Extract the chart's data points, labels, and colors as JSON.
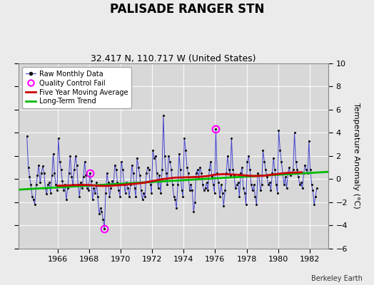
{
  "title": "PALISADE RANGER STN",
  "subtitle": "32.417 N, 110.717 W (United States)",
  "ylabel": "Temperature Anomaly (°C)",
  "credit": "Berkeley Earth",
  "ylim": [
    -6,
    10
  ],
  "xlim": [
    1963.5,
    1983.2
  ],
  "xticks": [
    1966,
    1968,
    1970,
    1972,
    1974,
    1976,
    1978,
    1980,
    1982
  ],
  "yticks": [
    -6,
    -4,
    -2,
    0,
    2,
    4,
    6,
    8,
    10
  ],
  "bg_color": "#ebebeb",
  "plot_bg_color": "#d8d8d8",
  "raw_line_color": "#4444cc",
  "raw_marker_color": "#111111",
  "moving_avg_color": "#cc0000",
  "trend_color": "#00bb00",
  "qc_fail_color": "#ff00ff",
  "raw_monthly_data": [
    [
      1964.04,
      3.7
    ],
    [
      1964.13,
      1.0
    ],
    [
      1964.21,
      0.2
    ],
    [
      1964.29,
      -0.5
    ],
    [
      1964.38,
      -1.5
    ],
    [
      1964.46,
      -1.8
    ],
    [
      1964.54,
      -2.2
    ],
    [
      1964.63,
      -0.5
    ],
    [
      1964.71,
      0.3
    ],
    [
      1964.79,
      1.2
    ],
    [
      1964.88,
      -0.3
    ],
    [
      1964.96,
      0.5
    ],
    [
      1965.04,
      1.1
    ],
    [
      1965.13,
      0.5
    ],
    [
      1965.21,
      -0.8
    ],
    [
      1965.29,
      -1.3
    ],
    [
      1965.38,
      -0.5
    ],
    [
      1965.46,
      -0.3
    ],
    [
      1965.54,
      -1.2
    ],
    [
      1965.63,
      0.3
    ],
    [
      1965.71,
      2.2
    ],
    [
      1965.79,
      0.5
    ],
    [
      1965.88,
      -0.5
    ],
    [
      1965.96,
      -1.0
    ],
    [
      1966.04,
      3.5
    ],
    [
      1966.13,
      1.5
    ],
    [
      1966.21,
      0.8
    ],
    [
      1966.29,
      -0.2
    ],
    [
      1966.38,
      -1.0
    ],
    [
      1966.46,
      -0.5
    ],
    [
      1966.54,
      -1.8
    ],
    [
      1966.63,
      -0.8
    ],
    [
      1966.71,
      0.5
    ],
    [
      1966.79,
      2.0
    ],
    [
      1966.88,
      0.2
    ],
    [
      1966.96,
      -0.5
    ],
    [
      1967.04,
      0.8
    ],
    [
      1967.13,
      2.0
    ],
    [
      1967.21,
      1.2
    ],
    [
      1967.29,
      -0.5
    ],
    [
      1967.38,
      -1.5
    ],
    [
      1967.46,
      -0.3
    ],
    [
      1967.54,
      -0.8
    ],
    [
      1967.63,
      0.2
    ],
    [
      1967.71,
      1.5
    ],
    [
      1967.79,
      0.3
    ],
    [
      1967.88,
      -0.8
    ],
    [
      1967.96,
      -1.0
    ],
    [
      1968.04,
      0.5
    ],
    [
      1968.13,
      -0.2
    ],
    [
      1968.21,
      -1.8
    ],
    [
      1968.29,
      -0.8
    ],
    [
      1968.38,
      -1.2
    ],
    [
      1968.46,
      -0.3
    ],
    [
      1968.54,
      -1.5
    ],
    [
      1968.63,
      -3.0
    ],
    [
      1968.71,
      -2.5
    ],
    [
      1968.79,
      -2.8
    ],
    [
      1968.88,
      -3.5
    ],
    [
      1968.96,
      -4.3
    ],
    [
      1969.04,
      -1.2
    ],
    [
      1969.13,
      0.5
    ],
    [
      1969.21,
      -0.3
    ],
    [
      1969.29,
      -1.5
    ],
    [
      1969.38,
      -0.8
    ],
    [
      1969.46,
      -0.2
    ],
    [
      1969.54,
      -0.5
    ],
    [
      1969.63,
      1.2
    ],
    [
      1969.71,
      0.8
    ],
    [
      1969.79,
      -0.3
    ],
    [
      1969.88,
      -1.0
    ],
    [
      1969.96,
      -1.5
    ],
    [
      1970.04,
      1.5
    ],
    [
      1970.13,
      0.8
    ],
    [
      1970.21,
      -0.5
    ],
    [
      1970.29,
      -1.2
    ],
    [
      1970.38,
      -0.3
    ],
    [
      1970.46,
      -0.8
    ],
    [
      1970.54,
      -1.5
    ],
    [
      1970.63,
      -0.5
    ],
    [
      1970.71,
      1.2
    ],
    [
      1970.79,
      0.5
    ],
    [
      1970.88,
      -0.8
    ],
    [
      1970.96,
      -1.5
    ],
    [
      1971.04,
      1.8
    ],
    [
      1971.13,
      1.0
    ],
    [
      1971.21,
      0.3
    ],
    [
      1971.29,
      -1.0
    ],
    [
      1971.38,
      -1.8
    ],
    [
      1971.46,
      -1.2
    ],
    [
      1971.54,
      -1.5
    ],
    [
      1971.63,
      0.5
    ],
    [
      1971.71,
      1.0
    ],
    [
      1971.79,
      0.8
    ],
    [
      1971.88,
      -0.5
    ],
    [
      1971.96,
      -1.2
    ],
    [
      1972.04,
      2.5
    ],
    [
      1972.13,
      1.8
    ],
    [
      1972.21,
      2.0
    ],
    [
      1972.29,
      0.5
    ],
    [
      1972.38,
      -0.8
    ],
    [
      1972.46,
      0.3
    ],
    [
      1972.54,
      -1.2
    ],
    [
      1972.63,
      0.8
    ],
    [
      1972.71,
      5.5
    ],
    [
      1972.79,
      2.0
    ],
    [
      1972.88,
      0.5
    ],
    [
      1972.96,
      -0.5
    ],
    [
      1973.04,
      2.0
    ],
    [
      1973.13,
      1.5
    ],
    [
      1973.21,
      0.8
    ],
    [
      1973.29,
      -0.5
    ],
    [
      1973.38,
      -1.5
    ],
    [
      1973.46,
      -1.8
    ],
    [
      1973.54,
      -2.5
    ],
    [
      1973.63,
      -0.5
    ],
    [
      1973.71,
      2.2
    ],
    [
      1973.79,
      0.8
    ],
    [
      1973.88,
      -1.0
    ],
    [
      1973.96,
      -1.5
    ],
    [
      1974.04,
      3.5
    ],
    [
      1974.13,
      2.5
    ],
    [
      1974.21,
      1.0
    ],
    [
      1974.29,
      0.5
    ],
    [
      1974.38,
      -1.0
    ],
    [
      1974.46,
      -0.5
    ],
    [
      1974.54,
      -1.0
    ],
    [
      1974.63,
      -2.8
    ],
    [
      1974.71,
      -2.0
    ],
    [
      1974.79,
      0.5
    ],
    [
      1974.88,
      0.8
    ],
    [
      1974.96,
      0.2
    ],
    [
      1975.04,
      1.0
    ],
    [
      1975.13,
      0.5
    ],
    [
      1975.21,
      -0.5
    ],
    [
      1975.29,
      -1.0
    ],
    [
      1975.38,
      -0.8
    ],
    [
      1975.46,
      -0.3
    ],
    [
      1975.54,
      -1.0
    ],
    [
      1975.63,
      0.8
    ],
    [
      1975.71,
      1.5
    ],
    [
      1975.79,
      0.2
    ],
    [
      1975.88,
      -0.5
    ],
    [
      1975.96,
      -1.2
    ],
    [
      1976.04,
      4.3
    ],
    [
      1976.13,
      0.5
    ],
    [
      1976.21,
      -0.3
    ],
    [
      1976.29,
      -1.5
    ],
    [
      1976.38,
      -0.5
    ],
    [
      1976.46,
      -1.2
    ],
    [
      1976.54,
      -2.3
    ],
    [
      1976.63,
      -1.0
    ],
    [
      1976.71,
      0.5
    ],
    [
      1976.79,
      2.0
    ],
    [
      1976.88,
      0.8
    ],
    [
      1976.96,
      0.3
    ],
    [
      1977.04,
      3.5
    ],
    [
      1977.13,
      0.8
    ],
    [
      1977.21,
      0.3
    ],
    [
      1977.29,
      -0.8
    ],
    [
      1977.38,
      -0.5
    ],
    [
      1977.46,
      -0.3
    ],
    [
      1977.54,
      -1.5
    ],
    [
      1977.63,
      0.5
    ],
    [
      1977.71,
      1.0
    ],
    [
      1977.79,
      -0.8
    ],
    [
      1977.88,
      -1.2
    ],
    [
      1977.96,
      -2.2
    ],
    [
      1978.04,
      1.5
    ],
    [
      1978.13,
      2.0
    ],
    [
      1978.21,
      0.8
    ],
    [
      1978.29,
      -0.5
    ],
    [
      1978.38,
      -1.0
    ],
    [
      1978.46,
      -0.5
    ],
    [
      1978.54,
      -1.5
    ],
    [
      1978.63,
      -2.2
    ],
    [
      1978.71,
      0.5
    ],
    [
      1978.79,
      0.3
    ],
    [
      1978.88,
      -1.0
    ],
    [
      1978.96,
      -0.5
    ],
    [
      1979.04,
      2.5
    ],
    [
      1979.13,
      1.5
    ],
    [
      1979.21,
      0.8
    ],
    [
      1979.29,
      0.2
    ],
    [
      1979.38,
      -0.5
    ],
    [
      1979.46,
      -0.3
    ],
    [
      1979.54,
      -1.0
    ],
    [
      1979.63,
      0.5
    ],
    [
      1979.71,
      1.8
    ],
    [
      1979.79,
      0.8
    ],
    [
      1979.88,
      -0.5
    ],
    [
      1979.96,
      -1.2
    ],
    [
      1980.04,
      4.2
    ],
    [
      1980.13,
      2.5
    ],
    [
      1980.21,
      1.5
    ],
    [
      1980.29,
      0.5
    ],
    [
      1980.38,
      -0.5
    ],
    [
      1980.46,
      0.2
    ],
    [
      1980.54,
      -0.8
    ],
    [
      1980.63,
      0.5
    ],
    [
      1980.71,
      1.0
    ],
    [
      1980.79,
      0.3
    ],
    [
      1980.88,
      0.5
    ],
    [
      1980.96,
      0.8
    ],
    [
      1981.04,
      4.0
    ],
    [
      1981.13,
      1.5
    ],
    [
      1981.21,
      0.8
    ],
    [
      1981.29,
      0.2
    ],
    [
      1981.38,
      -0.5
    ],
    [
      1981.46,
      -0.3
    ],
    [
      1981.54,
      -0.8
    ],
    [
      1981.63,
      0.5
    ],
    [
      1981.71,
      1.2
    ],
    [
      1981.79,
      0.8
    ],
    [
      1981.88,
      0.5
    ],
    [
      1981.96,
      3.3
    ],
    [
      1982.04,
      0.8
    ],
    [
      1982.13,
      -0.5
    ],
    [
      1982.21,
      -1.0
    ],
    [
      1982.29,
      -2.2
    ],
    [
      1982.38,
      -1.5
    ],
    [
      1982.46,
      -0.8
    ]
  ],
  "qc_fail_points": [
    [
      1968.04,
      0.5
    ],
    [
      1968.96,
      -4.3
    ],
    [
      1976.04,
      4.3
    ]
  ],
  "trend_x": [
    1963.5,
    1983.2
  ],
  "trend_y": [
    -0.92,
    0.62
  ],
  "moving_avg": [
    [
      1966.0,
      -0.58
    ],
    [
      1966.5,
      -0.56
    ],
    [
      1967.0,
      -0.53
    ],
    [
      1967.5,
      -0.51
    ],
    [
      1968.0,
      -0.52
    ],
    [
      1968.5,
      -0.58
    ],
    [
      1969.0,
      -0.6
    ],
    [
      1969.5,
      -0.57
    ],
    [
      1970.0,
      -0.52
    ],
    [
      1970.5,
      -0.46
    ],
    [
      1971.0,
      -0.4
    ],
    [
      1971.5,
      -0.32
    ],
    [
      1972.0,
      -0.18
    ],
    [
      1972.5,
      -0.05
    ],
    [
      1973.0,
      0.05
    ],
    [
      1973.5,
      0.12
    ],
    [
      1974.0,
      0.14
    ],
    [
      1974.5,
      0.16
    ],
    [
      1975.0,
      0.19
    ],
    [
      1975.5,
      0.25
    ],
    [
      1976.0,
      0.38
    ],
    [
      1976.5,
      0.42
    ],
    [
      1977.0,
      0.4
    ],
    [
      1977.5,
      0.36
    ],
    [
      1978.0,
      0.3
    ],
    [
      1978.5,
      0.26
    ],
    [
      1979.0,
      0.28
    ],
    [
      1979.5,
      0.35
    ],
    [
      1980.0,
      0.44
    ],
    [
      1980.5,
      0.52
    ],
    [
      1981.0,
      0.56
    ],
    [
      1981.5,
      0.58
    ]
  ]
}
